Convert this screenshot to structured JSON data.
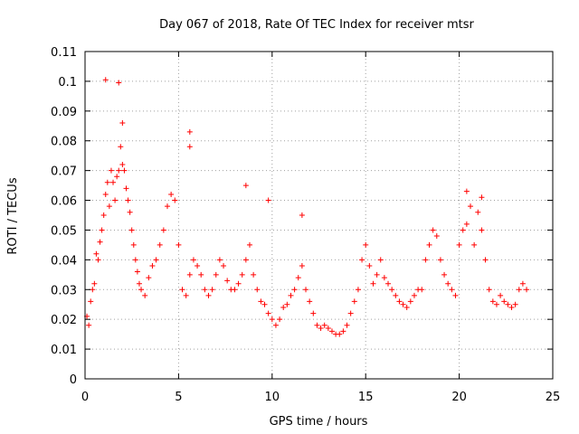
{
  "chart_data": {
    "type": "scatter",
    "title": "Day 067 of 2018, Rate Of TEC Index for receiver mtsr",
    "xlabel": "GPS time / hours",
    "ylabel": "ROTI / TECUs",
    "xlim": [
      0,
      25
    ],
    "ylim": [
      0,
      0.11
    ],
    "xticks": [
      "0",
      "5",
      "10",
      "15",
      "20",
      "25"
    ],
    "yticks": [
      "0",
      "0.01",
      "0.02",
      "0.03",
      "0.04",
      "0.05",
      "0.06",
      "0.07",
      "0.08",
      "0.09",
      "0.1",
      "0.11"
    ],
    "grid": true,
    "marker": "plus",
    "color": "#ff0000",
    "series": [
      {
        "x": [
          0.1,
          0.2,
          0.3,
          0.4,
          0.5,
          0.6,
          0.7,
          0.8,
          0.9,
          1.0,
          1.1,
          1.2,
          1.3,
          1.4,
          1.5,
          1.6,
          1.7,
          1.8,
          1.9,
          2.0,
          2.1,
          2.2,
          2.3,
          2.4,
          2.5,
          2.6,
          2.7,
          2.8,
          2.9,
          3.0,
          3.2,
          3.4,
          3.6,
          3.8,
          4.0,
          4.2,
          4.4,
          4.6,
          4.8,
          5.0,
          5.2,
          5.4,
          5.6,
          5.8,
          6.0,
          6.2,
          6.4,
          6.6,
          6.8,
          7.0,
          7.2,
          7.4,
          7.6,
          7.8,
          8.0,
          8.2,
          8.4,
          8.6,
          8.8,
          9.0,
          9.2,
          9.4,
          9.6,
          9.8,
          10.0,
          10.2,
          10.4,
          10.6,
          10.8,
          11.0,
          11.2,
          11.4,
          11.6,
          11.8,
          12.0,
          12.2,
          12.4,
          12.6,
          12.8,
          13.0,
          13.2,
          13.4,
          13.6,
          13.8,
          14.0,
          14.2,
          14.4,
          14.6,
          14.8,
          15.0,
          15.2,
          15.4,
          15.6,
          15.8,
          16.0,
          16.2,
          16.4,
          16.6,
          16.8,
          17.0,
          17.2,
          17.4,
          17.6,
          17.8,
          18.0,
          18.2,
          18.4,
          18.6,
          18.8,
          19.0,
          19.2,
          19.4,
          19.6,
          19.8,
          20.0,
          20.2,
          20.4,
          20.6,
          20.8,
          21.0,
          21.2,
          21.4,
          21.6,
          21.8,
          22.0,
          22.2,
          22.4,
          22.6,
          22.8,
          23.0,
          23.2,
          23.4,
          23.6,
          1.1,
          1.8,
          2.0,
          5.6,
          5.6,
          8.6,
          9.8,
          11.6,
          20.4,
          21.2
        ],
        "y": [
          0.021,
          0.018,
          0.026,
          0.03,
          0.032,
          0.042,
          0.04,
          0.046,
          0.05,
          0.055,
          0.062,
          0.066,
          0.058,
          0.07,
          0.066,
          0.06,
          0.068,
          0.07,
          0.078,
          0.072,
          0.07,
          0.064,
          0.06,
          0.056,
          0.05,
          0.045,
          0.04,
          0.036,
          0.032,
          0.03,
          0.028,
          0.034,
          0.038,
          0.04,
          0.045,
          0.05,
          0.058,
          0.062,
          0.06,
          0.045,
          0.03,
          0.028,
          0.035,
          0.04,
          0.038,
          0.035,
          0.03,
          0.028,
          0.03,
          0.035,
          0.04,
          0.038,
          0.033,
          0.03,
          0.03,
          0.032,
          0.035,
          0.04,
          0.045,
          0.035,
          0.03,
          0.026,
          0.025,
          0.022,
          0.02,
          0.018,
          0.02,
          0.024,
          0.025,
          0.028,
          0.03,
          0.034,
          0.038,
          0.03,
          0.026,
          0.022,
          0.018,
          0.017,
          0.018,
          0.017,
          0.016,
          0.015,
          0.015,
          0.016,
          0.018,
          0.022,
          0.026,
          0.03,
          0.04,
          0.045,
          0.038,
          0.032,
          0.035,
          0.04,
          0.034,
          0.032,
          0.03,
          0.028,
          0.026,
          0.025,
          0.024,
          0.026,
          0.028,
          0.03,
          0.03,
          0.04,
          0.045,
          0.05,
          0.048,
          0.04,
          0.035,
          0.032,
          0.03,
          0.028,
          0.045,
          0.05,
          0.052,
          0.058,
          0.045,
          0.056,
          0.05,
          0.04,
          0.03,
          0.026,
          0.025,
          0.028,
          0.026,
          0.025,
          0.024,
          0.025,
          0.03,
          0.032,
          0.03,
          0.1005,
          0.0995,
          0.086,
          0.083,
          0.078,
          0.065,
          0.06,
          0.055,
          0.063,
          0.061
        ]
      }
    ]
  }
}
